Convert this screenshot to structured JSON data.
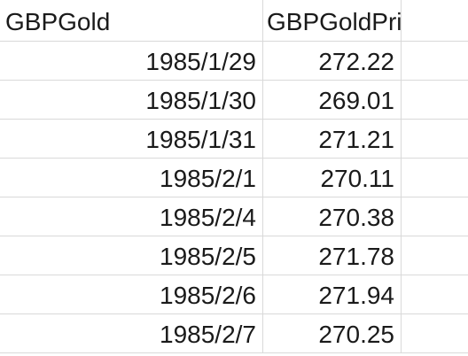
{
  "columns": [
    {
      "header": "GBPGold"
    },
    {
      "header": "GBPGoldPrice"
    },
    {
      "header": ""
    }
  ],
  "rows": [
    {
      "date": "1985/1/29",
      "price": "272.22"
    },
    {
      "date": "1985/1/30",
      "price": "269.01"
    },
    {
      "date": "1985/1/31",
      "price": "271.21"
    },
    {
      "date": "1985/2/1",
      "price": "270.11"
    },
    {
      "date": "1985/2/4",
      "price": "270.38"
    },
    {
      "date": "1985/2/5",
      "price": "271.78"
    },
    {
      "date": "1985/2/6",
      "price": "271.94"
    },
    {
      "date": "1985/2/7",
      "price": "270.25"
    }
  ],
  "colors": {
    "gridline": "#d9d9d9",
    "text": "#1a1a1a",
    "background": "#ffffff"
  }
}
